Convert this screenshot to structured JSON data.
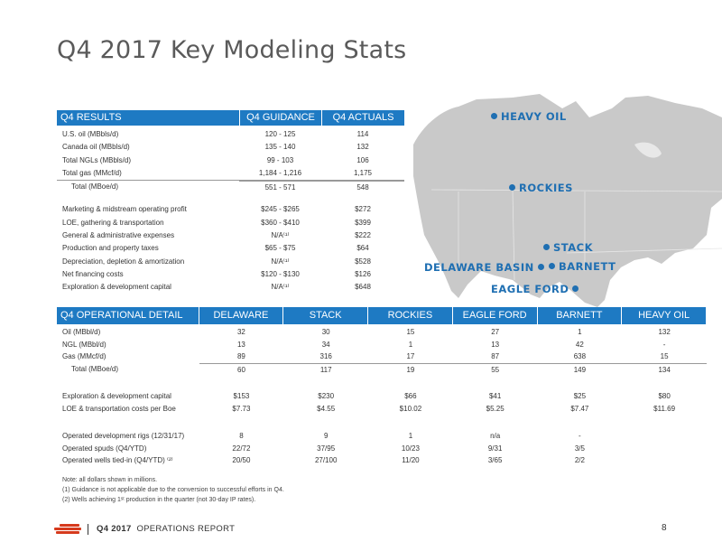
{
  "title": "Q4 2017 Key Modeling Stats",
  "map": {
    "labels": [
      "HEAVY OIL",
      "ROCKIES",
      "STACK",
      "DELAWARE BASIN",
      "BARNETT",
      "EAGLE FORD"
    ]
  },
  "results": {
    "headers": [
      "Q4 RESULTS",
      "Q4 GUIDANCE",
      "Q4 ACTUALS"
    ],
    "rows": [
      [
        "U.S. oil (MBbls/d)",
        "120 - 125",
        "114"
      ],
      [
        "Canada oil (MBbls/d)",
        "135 - 140",
        "132"
      ],
      [
        "Total NGLs (MBbls/d)",
        "99 - 103",
        "106"
      ],
      [
        "Total gas (MMcf/d)",
        "1,184 - 1,216",
        "1,175"
      ],
      [
        "Total (MBoe/d)",
        "551 - 571",
        "548"
      ],
      [
        "Marketing & midstream operating profit",
        "$245 - $265",
        "$272"
      ],
      [
        "LOE, gathering & transportation",
        "$360 - $410",
        "$399"
      ],
      [
        "General & administrative expenses",
        "N/A⁽¹⁾",
        "$222"
      ],
      [
        "Production and property taxes",
        "$65 - $75",
        "$64"
      ],
      [
        "Depreciation, depletion & amortization",
        "N/A⁽¹⁾",
        "$528"
      ],
      [
        "Net financing costs",
        "$120 - $130",
        "$126"
      ],
      [
        "Exploration & development capital",
        "N/A⁽¹⁾",
        "$648"
      ]
    ]
  },
  "operational": {
    "headers": [
      "Q4 OPERATIONAL DETAIL",
      "DELAWARE BASIN",
      "STACK",
      "ROCKIES",
      "EAGLE FORD",
      "BARNETT",
      "HEAVY OIL"
    ],
    "rows": [
      [
        "Oil (MBbl/d)",
        "32",
        "30",
        "15",
        "27",
        "1",
        "132"
      ],
      [
        "NGL (MBbl/d)",
        "13",
        "34",
        "1",
        "13",
        "42",
        "-"
      ],
      [
        "Gas (MMcf/d)",
        "89",
        "316",
        "17",
        "87",
        "638",
        "15"
      ],
      [
        "Total (MBoe/d)",
        "60",
        "117",
        "19",
        "55",
        "149",
        "134"
      ],
      [
        "Exploration & development capital",
        "$153",
        "$230",
        "$66",
        "$41",
        "$25",
        "$80"
      ],
      [
        "LOE & transportation costs per Boe",
        "$7.73",
        "$4.55",
        "$10.02",
        "$5.25",
        "$7.47",
        "$11.69"
      ],
      [
        "Operated development rigs (12/31/17)",
        "8",
        "9",
        "1",
        "n/a",
        "-",
        ""
      ],
      [
        "Operated spuds (Q4/YTD)",
        "22/72",
        "37/95",
        "10/23",
        "9/31",
        "3/5",
        ""
      ],
      [
        "Operated wells tied-in (Q4/YTD) ⁽²⁾",
        "20/50",
        "27/100",
        "11/20",
        "3/65",
        "2/2",
        ""
      ]
    ]
  },
  "notes": [
    "Note: all dollars shown in millions.",
    "(1) Guidance is not applicable due to the conversion to successful efforts in Q4.",
    "(2) Wells achieving 1ˢᵗ production in the quarter (not 30-day IP rates)."
  ],
  "footer": {
    "report_year": "Q4 2017",
    "report_name": "OPERATIONS REPORT",
    "page_number": "8"
  },
  "colors": {
    "header_blue": "#1e7ac3",
    "map_label_blue": "#1f6fb2",
    "map_land": "#c9c9c9",
    "logo_red": "#d63a1d"
  }
}
